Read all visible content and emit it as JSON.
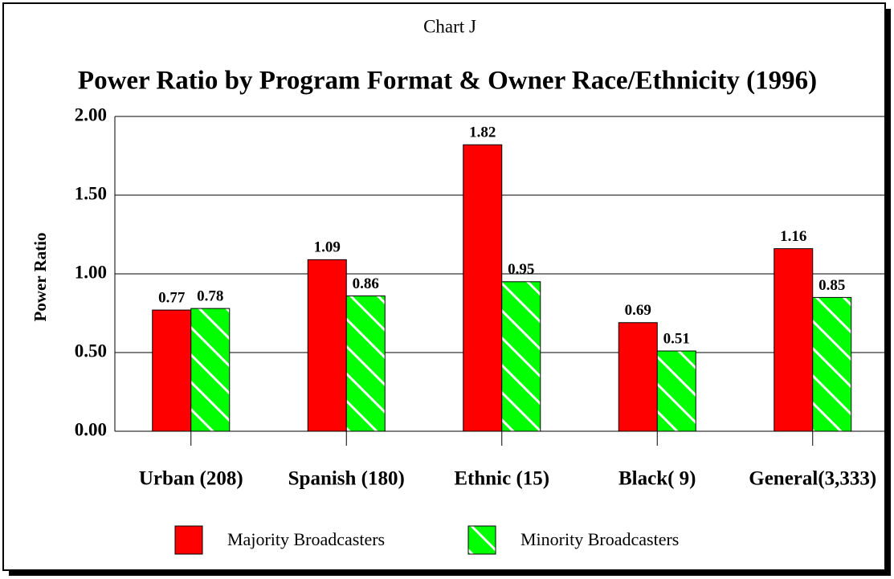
{
  "chart_data": {
    "type": "bar",
    "subtitle": "Chart J",
    "title": "Power Ratio by Program Format & Owner Race/Ethnicity (1996)",
    "y_label": "Power Ratio",
    "categories": [
      "Urban (208)",
      "Spanish (180)",
      "Ethnic (15)",
      "Black( 9)",
      "General(3,333)"
    ],
    "series": [
      {
        "name": "Majority Broadcasters",
        "color": "#ff0000",
        "values": [
          0.77,
          1.09,
          1.82,
          0.69,
          1.16
        ]
      },
      {
        "name": "Minority Broadcasters",
        "color": "#00ff00",
        "values": [
          0.78,
          0.86,
          0.95,
          0.51,
          0.85
        ]
      }
    ],
    "ylim": [
      0,
      2
    ],
    "yticks": [
      {
        "value": 0,
        "label": "0.00"
      },
      {
        "value": 0.5,
        "label": "0.50"
      },
      {
        "value": 1,
        "label": "1.00"
      },
      {
        "value": 1.5,
        "label": "1.50"
      },
      {
        "value": 2,
        "label": "2.00"
      }
    ],
    "grid": true
  }
}
